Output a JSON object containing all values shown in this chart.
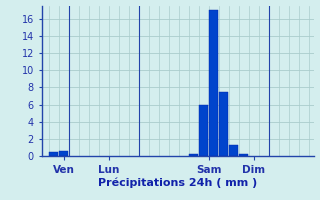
{
  "title": "",
  "xlabel": "Précipitations 24h ( mm )",
  "ylabel": "",
  "background_color": "#d4eeee",
  "bar_color": "#0044cc",
  "bar_color_edge": "#0022aa",
  "ylim": [
    0,
    17.5
  ],
  "yticks": [
    0,
    2,
    4,
    6,
    8,
    10,
    12,
    14,
    16
  ],
  "grid_color": "#aacccc",
  "axis_color": "#2244aa",
  "tick_label_color": "#2233aa",
  "xlabel_color": "#1122aa",
  "bars": [
    {
      "x": 1,
      "height": 0.5
    },
    {
      "x": 2,
      "height": 0.6
    },
    {
      "x": 15,
      "height": 0.25
    },
    {
      "x": 16,
      "height": 6.0
    },
    {
      "x": 17,
      "height": 17.0
    },
    {
      "x": 18,
      "height": 7.5
    },
    {
      "x": 19,
      "height": 1.3
    },
    {
      "x": 20,
      "height": 0.2
    }
  ],
  "day_lines": [
    3,
    10,
    23
  ],
  "day_ticks": [
    2,
    6.5,
    16.5,
    21
  ],
  "day_labels": [
    "Ven",
    "Lun",
    "Sam",
    "Dim"
  ],
  "xlim": [
    -0.2,
    27
  ],
  "total_bars": 27,
  "bar_width": 0.85
}
